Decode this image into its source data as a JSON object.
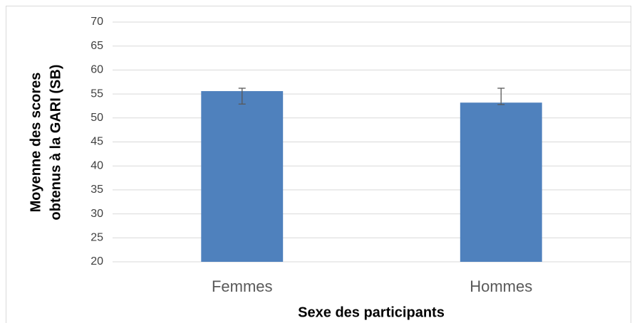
{
  "chart_data": {
    "type": "bar",
    "xlabel": "Sexe des participants",
    "ylabel": [
      "Moyenne des scores",
      "obtenus à la GARI (SB)"
    ],
    "categories": [
      "Femmes",
      "Hommes"
    ],
    "values": [
      55.6,
      53.2
    ],
    "errors_minus": [
      2.7,
      0.4
    ],
    "errors_plus": [
      0.6,
      3.0
    ],
    "color": "#4f81bd",
    "error_color": "#595959",
    "ylim": [
      20,
      70
    ],
    "yticks": [
      20,
      25,
      30,
      35,
      40,
      45,
      50,
      55,
      60,
      65,
      70
    ],
    "grid": true
  }
}
